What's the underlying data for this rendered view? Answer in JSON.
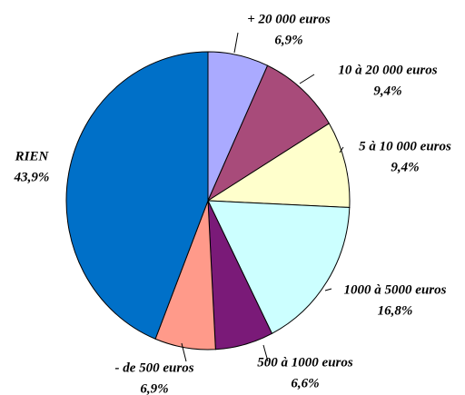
{
  "chart_data": {
    "type": "pie",
    "categories": [
      "+ 20 000 euros",
      "10 à 20 000 euros",
      "5 à 10 000 euros",
      "1000 à 5000 euros",
      "500 à 1000 euros",
      "- de 500 euros",
      "RIEN"
    ],
    "values": [
      6.9,
      9.4,
      9.4,
      16.8,
      6.6,
      6.9,
      43.9
    ],
    "value_labels": [
      "6,9%",
      "9,4%",
      "9,4%",
      "16,8%",
      "6,6%",
      "6,9%",
      "43,9%"
    ],
    "colors": [
      "#aaaaff",
      "#a84b7a",
      "#ffffcc",
      "#ccffff",
      "#7a1a78",
      "#ff9a8a",
      "#0070c8"
    ]
  }
}
